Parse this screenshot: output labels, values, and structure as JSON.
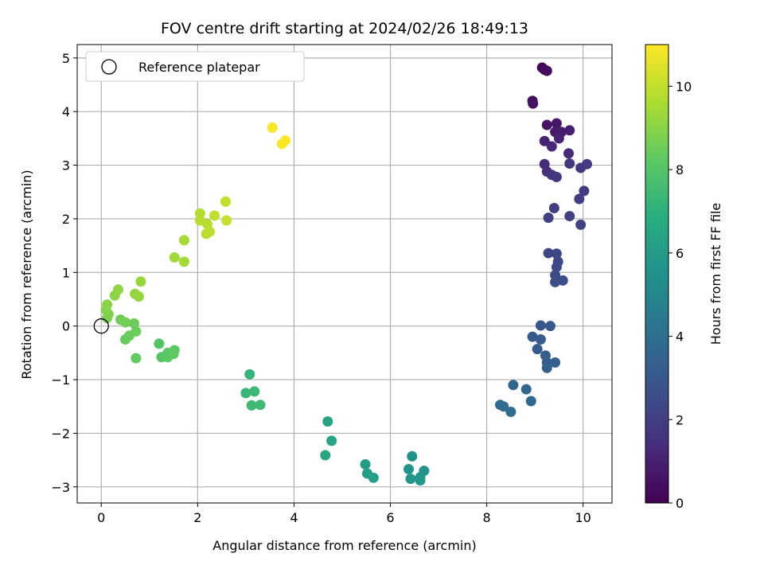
{
  "chart_data": {
    "type": "scatter",
    "title": "FOV centre drift starting at 2024/02/26 18:49:13",
    "xlabel": "Angular distance from reference (arcmin)",
    "ylabel": "Rotation from reference (arcmin)",
    "xlim": [
      -0.5,
      10.6
    ],
    "ylim": [
      -3.3,
      5.25
    ],
    "xticks": [
      0,
      2,
      4,
      6,
      8,
      10
    ],
    "yticks": [
      -3,
      -2,
      -1,
      0,
      1,
      2,
      3,
      4,
      5
    ],
    "grid": true,
    "legend": {
      "position": "top-left",
      "entries": [
        "Reference platepar"
      ]
    },
    "reference_point": {
      "x": 0,
      "y": 0,
      "label": "Reference platepar"
    },
    "colorbar": {
      "label": "Hours from first FF file",
      "colormap": "viridis",
      "range": [
        0,
        11
      ],
      "ticks": [
        0,
        2,
        4,
        6,
        8,
        10
      ]
    },
    "series": [
      {
        "color_by": "hours",
        "points": [
          [
            9.15,
            4.82,
            0.1
          ],
          [
            9.2,
            4.78,
            0.2
          ],
          [
            9.25,
            4.76,
            0.3
          ],
          [
            8.95,
            4.2,
            0.4
          ],
          [
            8.96,
            4.15,
            0.5
          ],
          [
            9.25,
            3.75,
            0.6
          ],
          [
            9.45,
            3.78,
            0.7
          ],
          [
            9.42,
            3.62,
            0.8
          ],
          [
            9.55,
            3.62,
            0.9
          ],
          [
            9.72,
            3.65,
            1.0
          ],
          [
            9.2,
            3.45,
            1.05
          ],
          [
            9.5,
            3.5,
            1.1
          ],
          [
            9.35,
            3.35,
            1.2
          ],
          [
            9.7,
            3.22,
            1.3
          ],
          [
            9.2,
            3.02,
            1.4
          ],
          [
            9.25,
            2.88,
            1.5
          ],
          [
            9.35,
            2.82,
            1.6
          ],
          [
            9.45,
            2.78,
            1.7
          ],
          [
            9.72,
            3.03,
            1.75
          ],
          [
            9.95,
            2.95,
            1.8
          ],
          [
            10.08,
            3.02,
            1.85
          ],
          [
            10.02,
            2.52,
            1.9
          ],
          [
            9.92,
            2.37,
            1.95
          ],
          [
            9.4,
            2.2,
            2.0
          ],
          [
            9.28,
            2.02,
            2.05
          ],
          [
            9.72,
            2.05,
            2.1
          ],
          [
            9.95,
            1.89,
            2.15
          ],
          [
            9.28,
            1.36,
            2.3
          ],
          [
            9.45,
            1.35,
            2.35
          ],
          [
            9.48,
            1.2,
            2.4
          ],
          [
            9.45,
            1.1,
            2.45
          ],
          [
            9.42,
            0.95,
            2.5
          ],
          [
            9.42,
            0.82,
            2.55
          ],
          [
            9.58,
            0.85,
            2.6
          ],
          [
            9.12,
            0.01,
            3.0
          ],
          [
            9.32,
            0.0,
            3.05
          ],
          [
            8.95,
            -0.2,
            3.1
          ],
          [
            9.12,
            -0.25,
            3.15
          ],
          [
            9.05,
            -0.43,
            3.2
          ],
          [
            9.22,
            -0.55,
            3.25
          ],
          [
            9.25,
            -0.68,
            3.3
          ],
          [
            9.42,
            -0.68,
            3.35
          ],
          [
            9.25,
            -0.78,
            3.4
          ],
          [
            8.55,
            -1.1,
            3.6
          ],
          [
            8.82,
            -1.18,
            3.65
          ],
          [
            8.92,
            -1.4,
            3.7
          ],
          [
            8.28,
            -1.47,
            3.8
          ],
          [
            8.35,
            -1.5,
            3.85
          ],
          [
            8.5,
            -1.6,
            3.9
          ],
          [
            6.45,
            -2.43,
            5.6
          ],
          [
            6.7,
            -2.7,
            5.65
          ],
          [
            6.38,
            -2.67,
            5.7
          ],
          [
            6.62,
            -2.82,
            5.75
          ],
          [
            6.42,
            -2.85,
            5.8
          ],
          [
            6.62,
            -2.88,
            5.85
          ],
          [
            5.48,
            -2.58,
            6.0
          ],
          [
            5.52,
            -2.75,
            6.05
          ],
          [
            5.65,
            -2.83,
            6.1
          ],
          [
            4.7,
            -1.78,
            6.4
          ],
          [
            4.78,
            -2.14,
            6.45
          ],
          [
            4.65,
            -2.41,
            6.5
          ],
          [
            3.08,
            -0.9,
            7.2
          ],
          [
            3.0,
            -1.25,
            7.3
          ],
          [
            3.18,
            -1.22,
            7.35
          ],
          [
            3.12,
            -1.48,
            7.4
          ],
          [
            3.3,
            -1.47,
            7.45
          ],
          [
            1.2,
            -0.33,
            8.0
          ],
          [
            1.25,
            -0.58,
            8.05
          ],
          [
            1.38,
            -0.5,
            8.1
          ],
          [
            1.38,
            -0.58,
            8.15
          ],
          [
            1.52,
            -0.45,
            8.2
          ],
          [
            1.5,
            -0.52,
            8.25
          ],
          [
            0.72,
            -0.6,
            8.3
          ],
          [
            0.5,
            -0.25,
            8.35
          ],
          [
            0.58,
            -0.18,
            8.4
          ],
          [
            0.72,
            -0.1,
            8.45
          ],
          [
            0.68,
            0.05,
            8.5
          ],
          [
            0.4,
            0.12,
            8.55
          ],
          [
            0.5,
            0.07,
            8.6
          ],
          [
            0.12,
            0.15,
            8.7
          ],
          [
            0.15,
            0.22,
            8.8
          ],
          [
            0.1,
            0.3,
            8.9
          ],
          [
            0.12,
            0.4,
            9.0
          ],
          [
            0.28,
            0.57,
            9.05
          ],
          [
            0.35,
            0.68,
            9.1
          ],
          [
            0.7,
            0.6,
            9.15
          ],
          [
            0.78,
            0.55,
            9.2
          ],
          [
            0.82,
            0.83,
            9.25
          ],
          [
            1.52,
            1.28,
            9.4
          ],
          [
            1.72,
            1.2,
            9.45
          ],
          [
            1.72,
            1.6,
            9.5
          ],
          [
            2.05,
            2.1,
            9.7
          ],
          [
            2.05,
            1.97,
            9.75
          ],
          [
            2.2,
            1.9,
            9.8
          ],
          [
            2.18,
            1.72,
            9.85
          ],
          [
            2.25,
            1.76,
            9.9
          ],
          [
            2.35,
            2.06,
            9.95
          ],
          [
            2.58,
            2.32,
            10.0
          ],
          [
            2.6,
            1.97,
            10.05
          ],
          [
            3.55,
            3.7,
            10.9
          ],
          [
            3.75,
            3.4,
            10.95
          ],
          [
            3.82,
            3.46,
            11.0
          ]
        ]
      }
    ]
  }
}
